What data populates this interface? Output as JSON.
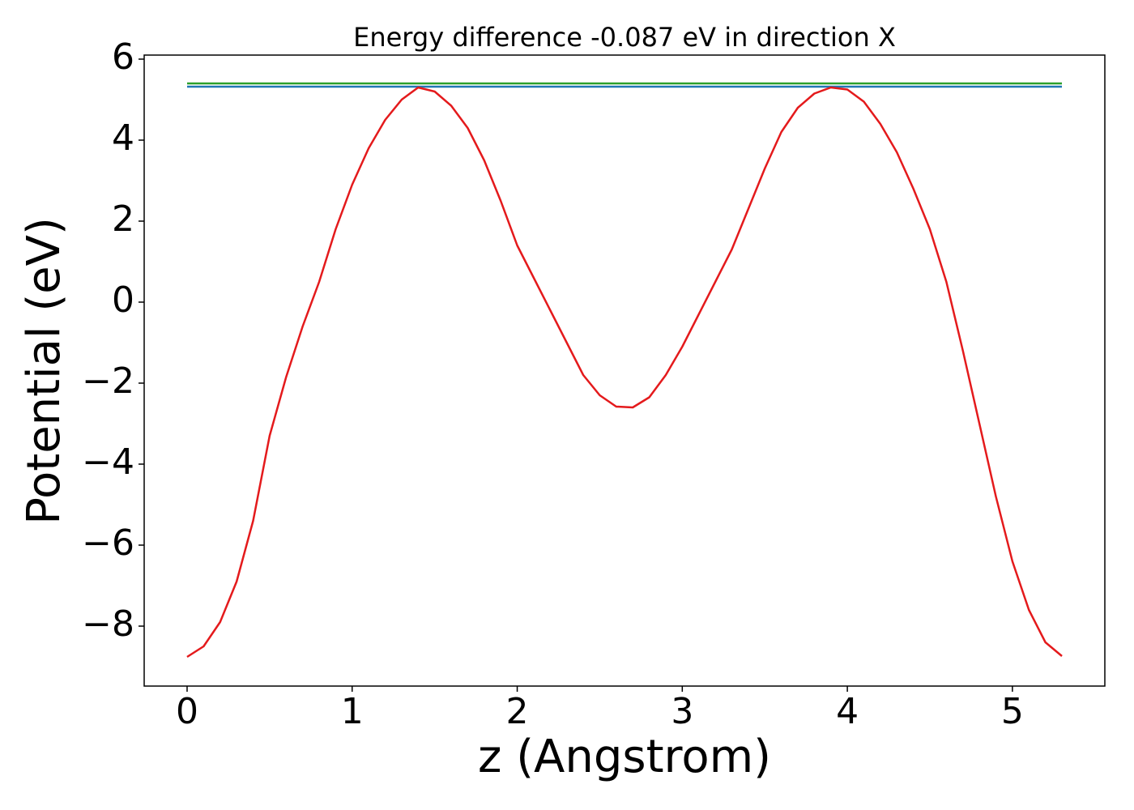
{
  "chart_data": {
    "type": "line",
    "title": "Energy difference -0.087 eV in direction X",
    "xlabel": "z (Angstrom)",
    "ylabel": "Potential (eV)",
    "xlim": [
      -0.26,
      5.56
    ],
    "ylim": [
      -9.48,
      6.1
    ],
    "xticks": [
      0,
      1,
      2,
      3,
      4,
      5
    ],
    "yticks": [
      -8,
      -6,
      -4,
      -2,
      0,
      2,
      4,
      6
    ],
    "series": [
      {
        "color": "#2ca02c",
        "x": [
          0,
          5.3
        ],
        "values": [
          5.4,
          5.4
        ]
      },
      {
        "color": "#1f77b4",
        "x": [
          0,
          5.3
        ],
        "values": [
          5.32,
          5.32
        ]
      },
      {
        "color": "#e41a1c",
        "x": [
          0,
          0.1,
          0.2,
          0.3,
          0.4,
          0.5,
          0.6,
          0.7,
          0.8,
          0.9,
          1.0,
          1.1,
          1.2,
          1.3,
          1.4,
          1.5,
          1.6,
          1.7,
          1.8,
          1.9,
          2.0,
          2.1,
          2.2,
          2.3,
          2.4,
          2.5,
          2.6,
          2.7,
          2.8,
          2.9,
          3.0,
          3.1,
          3.2,
          3.3,
          3.4,
          3.5,
          3.6,
          3.7,
          3.8,
          3.9,
          4.0,
          4.1,
          4.2,
          4.3,
          4.4,
          4.5,
          4.6,
          4.7,
          4.8,
          4.9,
          5.0,
          5.1,
          5.2,
          5.3
        ],
        "values": [
          -8.76,
          -8.5,
          -7.9,
          -6.9,
          -5.4,
          -3.3,
          -1.85,
          -0.6,
          0.5,
          1.8,
          2.9,
          3.8,
          4.5,
          5.0,
          5.3,
          5.2,
          4.85,
          4.3,
          3.5,
          2.5,
          1.4,
          0.6,
          -0.2,
          -1.0,
          -1.8,
          -2.3,
          -2.58,
          -2.6,
          -2.35,
          -1.8,
          -1.1,
          -0.3,
          0.5,
          1.3,
          2.3,
          3.3,
          4.2,
          4.8,
          5.15,
          5.3,
          5.25,
          4.95,
          4.4,
          3.7,
          2.8,
          1.8,
          0.5,
          -1.2,
          -3.0,
          -4.8,
          -6.4,
          -7.6,
          -8.4,
          -8.74
        ]
      }
    ]
  }
}
